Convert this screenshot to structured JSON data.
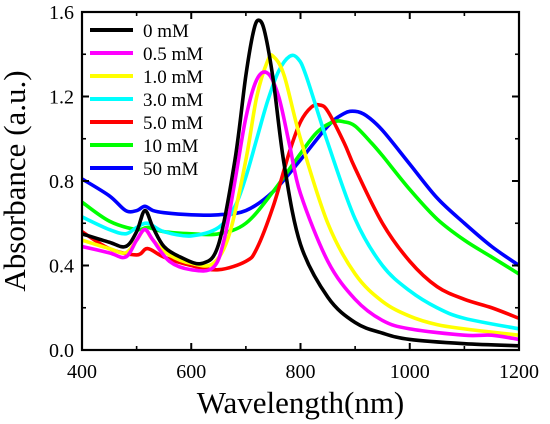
{
  "chart_data": {
    "type": "line",
    "xlabel": "Wavelength(nm)",
    "ylabel": "Absorbance (a.u.)",
    "xlim": [
      400,
      1200
    ],
    "ylim": [
      0.0,
      1.6
    ],
    "xticks": [
      400,
      600,
      800,
      1000,
      1200
    ],
    "yticks": [
      0.0,
      0.4,
      0.8,
      1.2,
      1.6
    ],
    "xtick_labels": [
      "400",
      "600",
      "800",
      "1000",
      "1200"
    ],
    "ytick_labels": [
      "0.0",
      "0.4",
      "0.8",
      "1.2",
      "1.6"
    ],
    "grid": false,
    "legend_position": "top-left",
    "series": [
      {
        "name": "0 mM",
        "color": "#000000",
        "x": [
          400,
          450,
          480,
          500,
          515,
          530,
          550,
          580,
          620,
          650,
          680,
          700,
          715,
          725,
          735,
          750,
          770,
          800,
          850,
          900,
          950,
          1000,
          1100,
          1200
        ],
        "y": [
          0.55,
          0.51,
          0.49,
          0.56,
          0.66,
          0.58,
          0.49,
          0.44,
          0.41,
          0.5,
          0.9,
          1.3,
          1.52,
          1.56,
          1.5,
          1.28,
          0.88,
          0.5,
          0.25,
          0.13,
          0.08,
          0.05,
          0.03,
          0.02
        ]
      },
      {
        "name": "0.5 mM",
        "color": "#ff00ff",
        "x": [
          400,
          450,
          480,
          500,
          515,
          530,
          560,
          600,
          640,
          660,
          680,
          700,
          720,
          740,
          760,
          780,
          800,
          850,
          900,
          950,
          1000,
          1100,
          1150,
          1200
        ],
        "y": [
          0.49,
          0.46,
          0.44,
          0.52,
          0.57,
          0.52,
          0.42,
          0.38,
          0.39,
          0.52,
          0.8,
          1.1,
          1.28,
          1.31,
          1.2,
          0.97,
          0.74,
          0.42,
          0.24,
          0.14,
          0.1,
          0.07,
          0.07,
          0.05
        ]
      },
      {
        "name": "1.0 mM",
        "color": "#ffff00",
        "x": [
          400,
          450,
          480,
          500,
          515,
          530,
          560,
          600,
          640,
          670,
          700,
          720,
          740,
          750,
          770,
          800,
          850,
          900,
          950,
          1000,
          1050,
          1100,
          1200
        ],
        "y": [
          0.52,
          0.48,
          0.46,
          0.52,
          0.57,
          0.52,
          0.45,
          0.41,
          0.41,
          0.55,
          0.9,
          1.2,
          1.37,
          1.39,
          1.3,
          1.0,
          0.6,
          0.36,
          0.23,
          0.16,
          0.12,
          0.1,
          0.07
        ]
      },
      {
        "name": "3.0 mM",
        "color": "#00ffff",
        "x": [
          400,
          450,
          480,
          500,
          520,
          550,
          600,
          650,
          680,
          700,
          720,
          740,
          760,
          780,
          795,
          810,
          850,
          900,
          950,
          1000,
          1050,
          1100,
          1200
        ],
        "y": [
          0.63,
          0.57,
          0.55,
          0.58,
          0.6,
          0.56,
          0.54,
          0.58,
          0.68,
          0.82,
          1.0,
          1.18,
          1.32,
          1.39,
          1.38,
          1.3,
          0.98,
          0.62,
          0.4,
          0.28,
          0.2,
          0.15,
          0.1
        ]
      },
      {
        "name": "5.0 mM",
        "color": "#ff0000",
        "x": [
          400,
          450,
          500,
          520,
          550,
          600,
          650,
          700,
          720,
          750,
          780,
          800,
          820,
          835,
          850,
          880,
          900,
          950,
          1000,
          1050,
          1100,
          1150,
          1200
        ],
        "y": [
          0.56,
          0.48,
          0.45,
          0.48,
          0.44,
          0.4,
          0.38,
          0.42,
          0.48,
          0.68,
          0.94,
          1.08,
          1.15,
          1.16,
          1.13,
          0.98,
          0.86,
          0.6,
          0.42,
          0.3,
          0.24,
          0.2,
          0.15
        ]
      },
      {
        "name": "10 mM",
        "color": "#00ff00",
        "x": [
          400,
          450,
          500,
          520,
          550,
          600,
          650,
          700,
          750,
          800,
          830,
          860,
          880,
          900,
          930,
          950,
          1000,
          1050,
          1100,
          1150,
          1200
        ],
        "y": [
          0.7,
          0.61,
          0.57,
          0.58,
          0.56,
          0.55,
          0.55,
          0.6,
          0.75,
          0.93,
          1.03,
          1.08,
          1.08,
          1.06,
          0.98,
          0.92,
          0.76,
          0.62,
          0.52,
          0.44,
          0.36
        ]
      },
      {
        "name": "50 mM",
        "color": "#0000ff",
        "x": [
          400,
          450,
          480,
          500,
          515,
          530,
          550,
          600,
          650,
          700,
          750,
          800,
          850,
          880,
          900,
          920,
          950,
          1000,
          1050,
          1100,
          1150,
          1200
        ],
        "y": [
          0.81,
          0.73,
          0.66,
          0.66,
          0.68,
          0.66,
          0.65,
          0.64,
          0.64,
          0.66,
          0.75,
          0.9,
          1.06,
          1.12,
          1.13,
          1.11,
          1.04,
          0.88,
          0.72,
          0.6,
          0.49,
          0.4
        ]
      }
    ]
  }
}
